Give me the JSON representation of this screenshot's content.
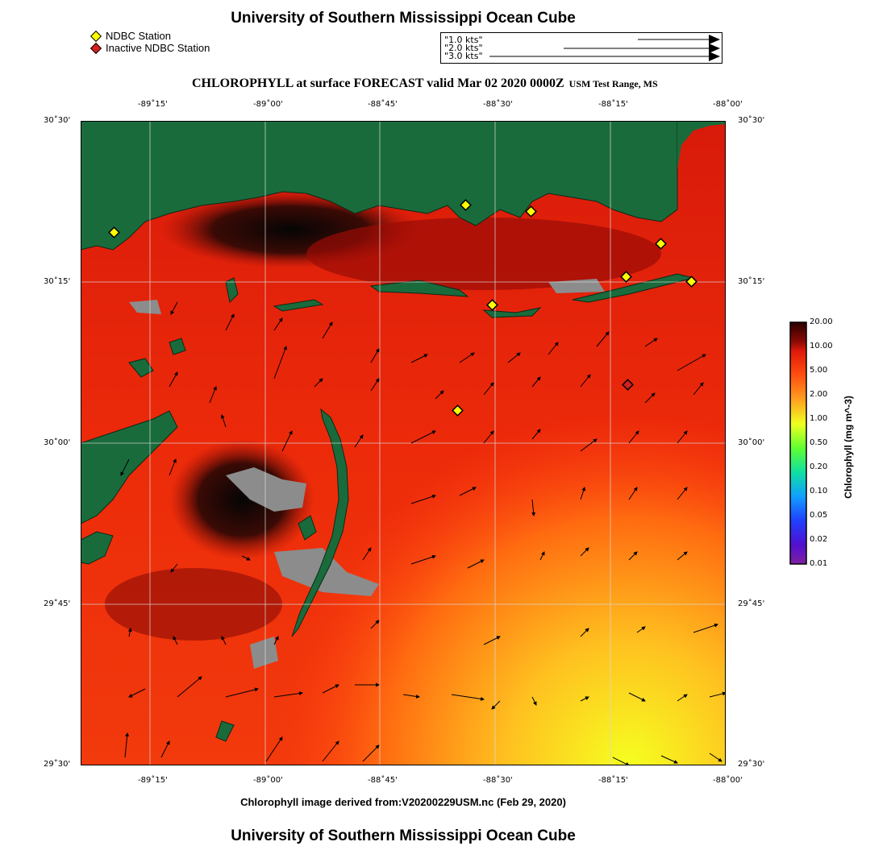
{
  "header": {
    "title": "University of Southern Mississippi Ocean Cube",
    "subtitle": "CHLOROPHYLL at surface FORECAST valid Mar 02 2020 0000Z",
    "region": "USM Test Range, MS"
  },
  "legend": {
    "station": "NDBC Station",
    "inactive_station": "Inactive NDBC Station",
    "station_color": "#ffff00",
    "inactive_color": "#d62020"
  },
  "current_scale": [
    "1.0 kts",
    "2.0 kts",
    "3.0 kts"
  ],
  "axes": {
    "lon_ticks": [
      "-89˚15'",
      "-89˚00'",
      "-88˚45'",
      "-88˚30'",
      "-88˚15'",
      "-88˚00'"
    ],
    "lat_ticks": [
      "30˚30'",
      "30˚15'",
      "30˚00'",
      "29˚45'",
      "29˚30'"
    ]
  },
  "colorbar": {
    "label": "Chlorophyll (mg m^-3)",
    "ticks": [
      "20.00",
      "10.00",
      "5.00",
      "2.00",
      "1.00",
      "0.50",
      "0.20",
      "0.10",
      "0.05",
      "0.02",
      "0.01"
    ]
  },
  "footer": {
    "source": "Chlorophyll image derived from:V20200229USM.nc (Feb 29, 2020)",
    "title": "University of Southern Mississippi Ocean Cube"
  },
  "colors": {
    "land": "#1a6b3c",
    "high_chl": "#0a0a0a",
    "mid_chl": "#e01a0a",
    "low_chl": "#ffe020",
    "cloud": "#8c8c8c"
  }
}
